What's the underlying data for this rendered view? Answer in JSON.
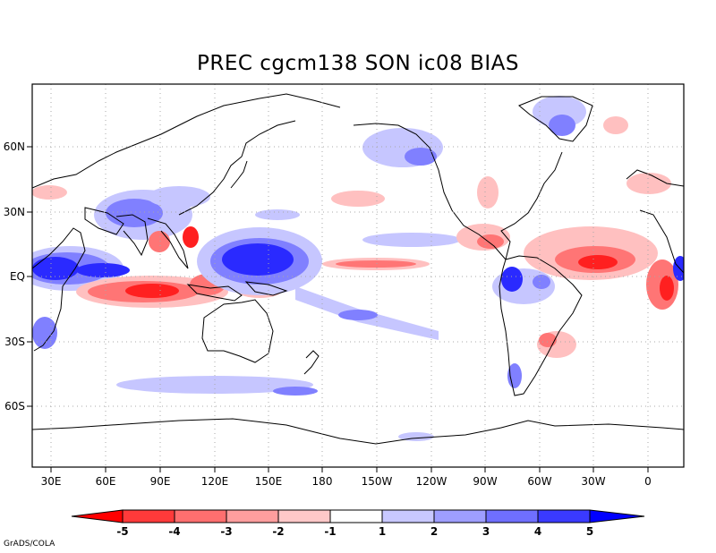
{
  "title": "PREC cgcm138 SON ic08 BIAS",
  "credit": "GrADS/COLA",
  "lat_labels": [
    "60N",
    "30N",
    "EQ",
    "30S",
    "60S"
  ],
  "lon_labels": [
    "30E",
    "60E",
    "90E",
    "120E",
    "150E",
    "180",
    "150W",
    "120W",
    "90W",
    "60W",
    "30W",
    "0"
  ],
  "colorbar": {
    "labels": [
      "-5",
      "-4",
      "-3",
      "-2",
      "-1",
      "1",
      "2",
      "3",
      "4",
      "5"
    ],
    "colors": [
      "#ff0000",
      "#ff3a3a",
      "#ff6f6f",
      "#ff9e9e",
      "#ffc8c8",
      "#ffffff",
      "#c8c8ff",
      "#9e9eff",
      "#6f6fff",
      "#3a3aff",
      "#0000ff"
    ]
  },
  "colors": {
    "red_strong": "#ff2020",
    "red_mid": "#ff7575",
    "red_light": "#ffc0c0",
    "blue_strong": "#2a2aff",
    "blue_mid": "#7f7fff",
    "blue_light": "#c6c6ff"
  }
}
